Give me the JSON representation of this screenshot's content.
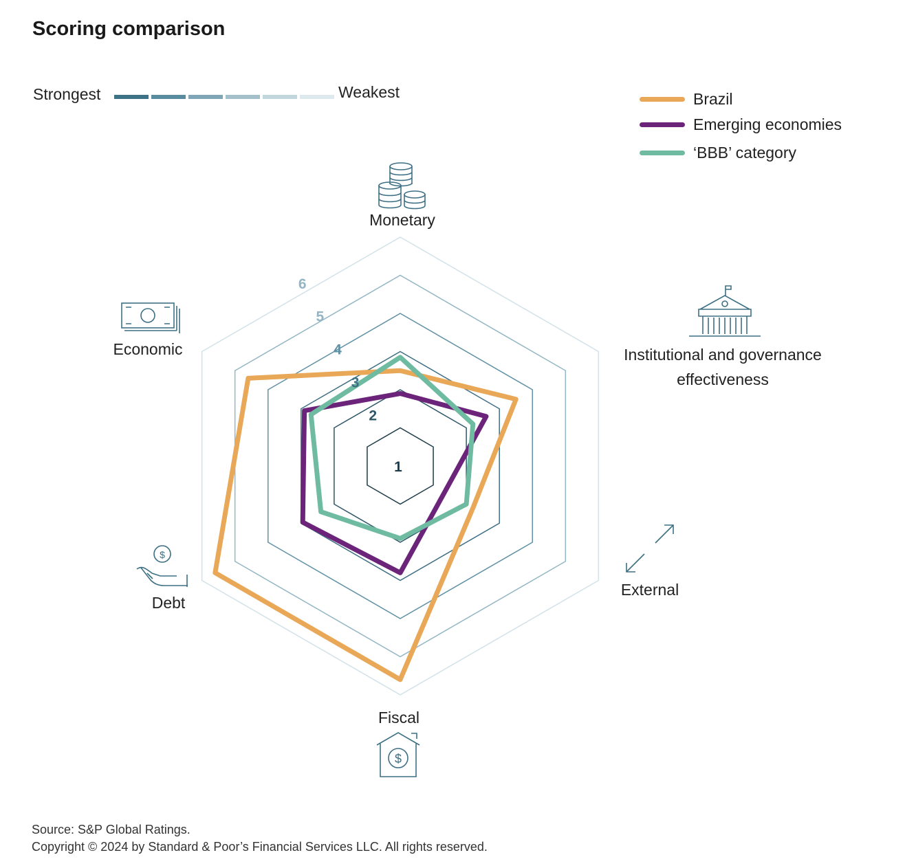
{
  "title": "Scoring comparison",
  "scale": {
    "strong_label": "Strongest",
    "weak_label": "Weakest",
    "colors": [
      "#3d7287",
      "#5a8ca0",
      "#7ea6b6",
      "#a3c0cb",
      "#c2d6de",
      "#dde9ed"
    ]
  },
  "chart_data": {
    "type": "radar",
    "title": "Scoring comparison",
    "axes": [
      "Monetary",
      "Institutional and governance effectiveness",
      "External",
      "Fiscal",
      "Debt",
      "Economic"
    ],
    "rlim": [
      0,
      6
    ],
    "rings": [
      "1",
      "2",
      "3",
      "4",
      "5",
      "6"
    ],
    "ring_colors": [
      "#1c3a48",
      "#2d5668",
      "#3e6e84",
      "#5f90a4",
      "#93b6c4",
      "#d2e2e8"
    ],
    "series": [
      {
        "name": "Brazil",
        "color": "#e8a857",
        "values": [
          2.5,
          3.5,
          2.2,
          5.6,
          5.6,
          4.6
        ]
      },
      {
        "name": "Emerging economies",
        "color": "#6b2479",
        "values": [
          1.9,
          2.6,
          1.35,
          2.8,
          2.95,
          2.9
        ]
      },
      {
        "name": "‘BBB’ category",
        "color": "#6fbba1",
        "values": [
          2.85,
          2.2,
          2.0,
          1.9,
          2.4,
          2.7
        ]
      }
    ],
    "legend_position": "top-right"
  },
  "footer": {
    "source": "Source: S&P Global Ratings.",
    "copyright": "Copyright © 2024 by Standard & Poor’s Financial Services LLC. All rights reserved."
  }
}
